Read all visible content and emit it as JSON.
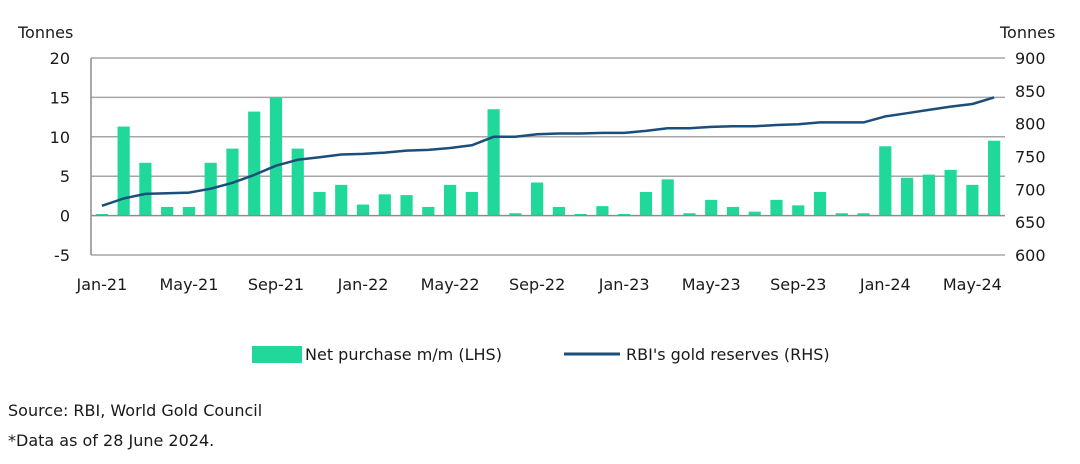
{
  "chart_data": {
    "type": "bar+line",
    "left_axis_unit": "Tonnes",
    "right_axis_unit": "Tonnes",
    "left_ylim": [
      -5,
      20
    ],
    "left_ticks": [
      "-5",
      "0",
      "5",
      "10",
      "15",
      "20"
    ],
    "right_ylim": [
      600,
      900
    ],
    "right_ticks": [
      "600",
      "650",
      "700",
      "750",
      "800",
      "850",
      "900"
    ],
    "x_tick_labels": [
      "Jan-21",
      "May-21",
      "Sep-21",
      "Jan-22",
      "May-22",
      "Sep-22",
      "Jan-23",
      "May-23",
      "Sep-23",
      "Jan-24",
      "May-24"
    ],
    "gridlines": "horizontal",
    "legend_position": "bottom",
    "colors": {
      "bars": "#1fd89a",
      "line": "#1c4e7a",
      "grid": "#a6a6a6"
    },
    "months": [
      "Jan-21",
      "Feb-21",
      "Mar-21",
      "Apr-21",
      "May-21",
      "Jun-21",
      "Jul-21",
      "Aug-21",
      "Sep-21",
      "Oct-21",
      "Nov-21",
      "Dec-21",
      "Jan-22",
      "Feb-22",
      "Mar-22",
      "Apr-22",
      "May-22",
      "Jun-22",
      "Jul-22",
      "Aug-22",
      "Sep-22",
      "Oct-22",
      "Nov-22",
      "Dec-22",
      "Jan-23",
      "Feb-23",
      "Mar-23",
      "Apr-23",
      "May-23",
      "Jun-23",
      "Jul-23",
      "Aug-23",
      "Sep-23",
      "Oct-23",
      "Nov-23",
      "Dec-23",
      "Jan-24",
      "Feb-24",
      "Mar-24",
      "Apr-24",
      "May-24",
      "Jun-24"
    ],
    "series": [
      {
        "name": "Net purchase m/m (LHS)",
        "type": "bar",
        "axis": "left",
        "values": [
          0.2,
          11.3,
          6.7,
          1.1,
          1.1,
          6.7,
          8.5,
          13.2,
          15.0,
          8.5,
          3.0,
          3.9,
          1.4,
          2.7,
          2.6,
          1.1,
          3.9,
          3.0,
          13.5,
          0.3,
          4.2,
          1.1,
          0.2,
          1.2,
          0.2,
          3.0,
          4.6,
          0.3,
          2.0,
          1.1,
          0.5,
          2.0,
          1.3,
          3.0,
          0.3,
          0.3,
          8.8,
          4.8,
          5.2,
          5.8,
          3.9,
          9.5
        ]
      },
      {
        "name": "RBI's gold reserves (RHS)",
        "type": "line",
        "axis": "right",
        "values": [
          675,
          686,
          693,
          694,
          695,
          701,
          710,
          722,
          736,
          745,
          749,
          753,
          754,
          756,
          759,
          760,
          763,
          767,
          780,
          780,
          784,
          785,
          785,
          786,
          786,
          789,
          793,
          793,
          795,
          796,
          796,
          798,
          799,
          802,
          802,
          802,
          811,
          816,
          821,
          826,
          830,
          840
        ]
      }
    ]
  },
  "footer": {
    "source": "Source: RBI, World Gold Council",
    "note": "*Data as of 28 June 2024."
  }
}
